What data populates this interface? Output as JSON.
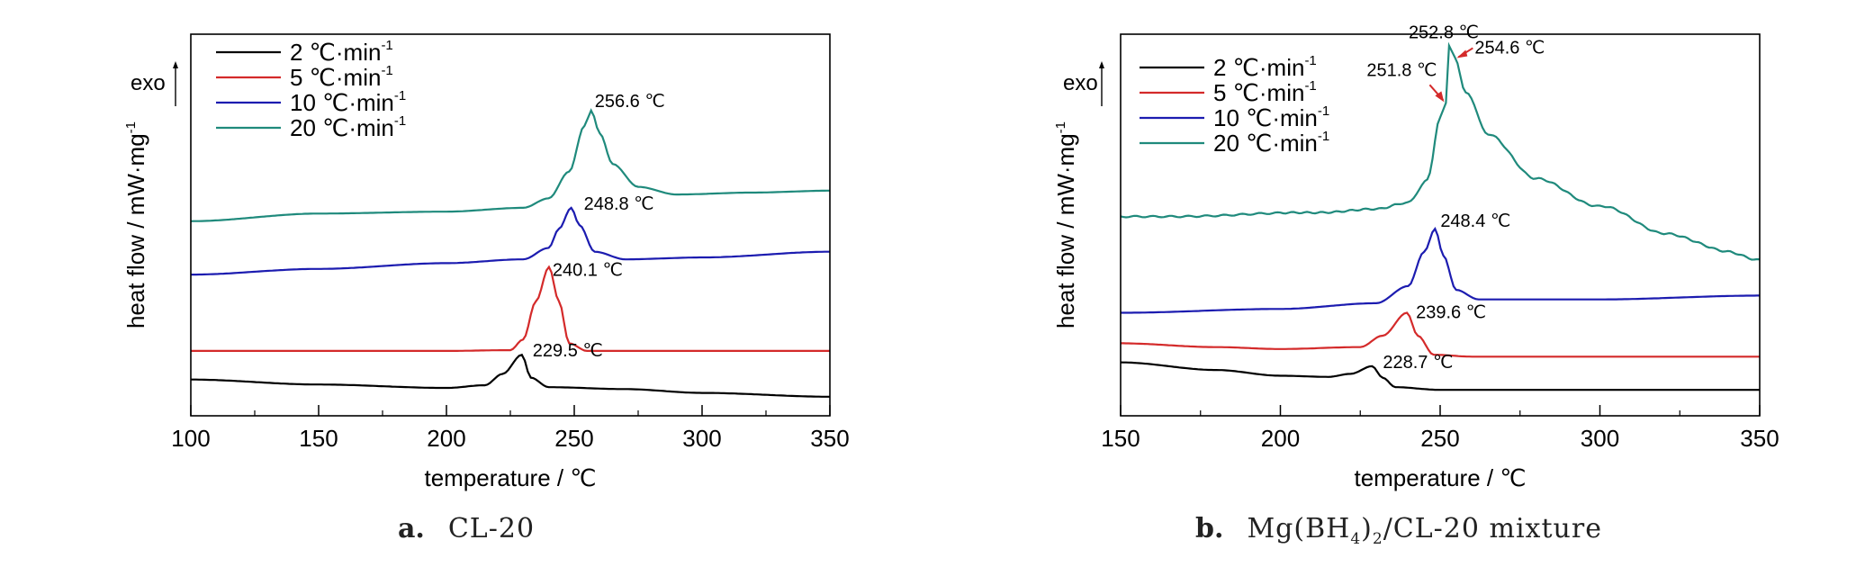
{
  "colors": {
    "2": "#000000",
    "5": "#d42a2a",
    "10": "#1c1cb0",
    "20": "#1f8a7c"
  },
  "chart_data": [
    {
      "type": "line",
      "panel": "a",
      "caption_letter": "a.",
      "caption_name": "CL-20",
      "xlabel": "temperature / ℃",
      "ylabel": "heat flow / mW·mg",
      "ylabel_sup": "-1",
      "exo_label": "exo",
      "xlim": [
        100,
        350
      ],
      "xticks": [
        100,
        150,
        200,
        250,
        300,
        350
      ],
      "legend": [
        {
          "rate": "2",
          "label": "2  ℃·min",
          "sup": "-1"
        },
        {
          "rate": "5",
          "label": "5  ℃·min",
          "sup": "-1"
        },
        {
          "rate": "10",
          "label": "10  ℃·min",
          "sup": "-1"
        },
        {
          "rate": "20",
          "label": "20  ℃·min",
          "sup": "-1"
        }
      ],
      "series": [
        {
          "rate": "2",
          "peak_temp": 229.5,
          "peak_label": "229.5 ℃",
          "points": [
            [
              100,
              0.095
            ],
            [
              150,
              0.082
            ],
            [
              200,
              0.073
            ],
            [
              215,
              0.08
            ],
            [
              222,
              0.11
            ],
            [
              229.5,
              0.16
            ],
            [
              233,
              0.1
            ],
            [
              240,
              0.075
            ],
            [
              270,
              0.07
            ],
            [
              300,
              0.06
            ],
            [
              350,
              0.05
            ]
          ]
        },
        {
          "rate": "5",
          "peak_temp": 240.1,
          "peak_label": "240.1 ℃",
          "points": [
            [
              100,
              0.17
            ],
            [
              200,
              0.17
            ],
            [
              225,
              0.172
            ],
            [
              230,
              0.2
            ],
            [
              235,
              0.3
            ],
            [
              240.1,
              0.39
            ],
            [
              244,
              0.3
            ],
            [
              248,
              0.19
            ],
            [
              255,
              0.17
            ],
            [
              350,
              0.17
            ]
          ]
        },
        {
          "rate": "10",
          "peak_temp": 248.8,
          "peak_label": "248.8 ℃",
          "points": [
            [
              100,
              0.37
            ],
            [
              150,
              0.385
            ],
            [
              200,
              0.4
            ],
            [
              230,
              0.41
            ],
            [
              240,
              0.44
            ],
            [
              244,
              0.49
            ],
            [
              248.8,
              0.545
            ],
            [
              252,
              0.5
            ],
            [
              258,
              0.43
            ],
            [
              270,
              0.41
            ],
            [
              300,
              0.415
            ],
            [
              350,
              0.43
            ]
          ]
        },
        {
          "rate": "20",
          "peak_temp": 256.6,
          "peak_label": "256.6 ℃",
          "points": [
            [
              100,
              0.51
            ],
            [
              150,
              0.53
            ],
            [
              200,
              0.535
            ],
            [
              230,
              0.545
            ],
            [
              240,
              0.57
            ],
            [
              248,
              0.64
            ],
            [
              254,
              0.76
            ],
            [
              256.6,
              0.8
            ],
            [
              260,
              0.74
            ],
            [
              265,
              0.66
            ],
            [
              275,
              0.6
            ],
            [
              290,
              0.58
            ],
            [
              320,
              0.585
            ],
            [
              350,
              0.59
            ]
          ]
        }
      ]
    },
    {
      "type": "line",
      "panel": "b",
      "caption_letter": "b.",
      "caption_name": "Mg(BH",
      "caption_sub1": "4",
      "caption_mid": ")",
      "caption_sub2": "2",
      "caption_tail": "/CL-20 mixture",
      "xlabel": "temperature / ℃",
      "ylabel": "heat flow / mW·mg",
      "ylabel_sup": "-1",
      "exo_label": "exo",
      "xlim": [
        150,
        350
      ],
      "xticks": [
        150,
        200,
        250,
        300,
        350
      ],
      "legend": [
        {
          "rate": "2",
          "label": "2  ℃·min",
          "sup": "-1"
        },
        {
          "rate": "5",
          "label": "5  ℃·min",
          "sup": "-1"
        },
        {
          "rate": "10",
          "label": "10  ℃·min",
          "sup": "-1"
        },
        {
          "rate": "20",
          "label": "20  ℃·min",
          "sup": "-1"
        }
      ],
      "series": [
        {
          "rate": "2",
          "peak_temp": 228.7,
          "peak_label": "228.7 ℃",
          "points": [
            [
              150,
              0.14
            ],
            [
              180,
              0.12
            ],
            [
              200,
              0.105
            ],
            [
              215,
              0.102
            ],
            [
              222,
              0.11
            ],
            [
              228.7,
              0.13
            ],
            [
              232,
              0.1
            ],
            [
              236,
              0.075
            ],
            [
              250,
              0.068
            ],
            [
              300,
              0.068
            ],
            [
              350,
              0.068
            ]
          ]
        },
        {
          "rate": "5",
          "peak_temp": 239.6,
          "peak_label": "239.6 ℃",
          "points": [
            [
              150,
              0.19
            ],
            [
              180,
              0.18
            ],
            [
              200,
              0.175
            ],
            [
              225,
              0.18
            ],
            [
              232,
              0.21
            ],
            [
              239.6,
              0.27
            ],
            [
              243,
              0.21
            ],
            [
              248,
              0.16
            ],
            [
              260,
              0.155
            ],
            [
              350,
              0.155
            ]
          ]
        },
        {
          "rate": "10",
          "peak_temp": 248.4,
          "peak_label": "248.4 ℃",
          "points": [
            [
              150,
              0.27
            ],
            [
              200,
              0.28
            ],
            [
              230,
              0.295
            ],
            [
              240,
              0.34
            ],
            [
              245,
              0.43
            ],
            [
              248.4,
              0.49
            ],
            [
              251,
              0.42
            ],
            [
              255,
              0.33
            ],
            [
              262,
              0.305
            ],
            [
              300,
              0.305
            ],
            [
              350,
              0.315
            ]
          ]
        },
        {
          "rate": "20",
          "peak_temp": 252.8,
          "peak_label": "252.8 ℃",
          "points": [
            [
              150,
              0.52
            ],
            [
              200,
              0.53
            ],
            [
              230,
              0.54
            ],
            [
              240,
              0.56
            ],
            [
              246,
              0.62
            ],
            [
              250,
              0.78
            ],
            [
              251.8,
              0.82
            ],
            [
              252.8,
              0.97
            ],
            [
              254.6,
              0.94
            ],
            [
              258,
              0.85
            ],
            [
              265,
              0.74
            ],
            [
              280,
              0.62
            ],
            [
              300,
              0.55
            ],
            [
              320,
              0.48
            ],
            [
              340,
              0.43
            ],
            [
              350,
              0.41
            ]
          ]
        }
      ],
      "annotations": [
        {
          "label": "251.8 ℃",
          "x": 251.8,
          "color": "#d42a2a"
        },
        {
          "label": "254.6 ℃",
          "x": 254.6,
          "color": "#d42a2a"
        }
      ]
    }
  ]
}
